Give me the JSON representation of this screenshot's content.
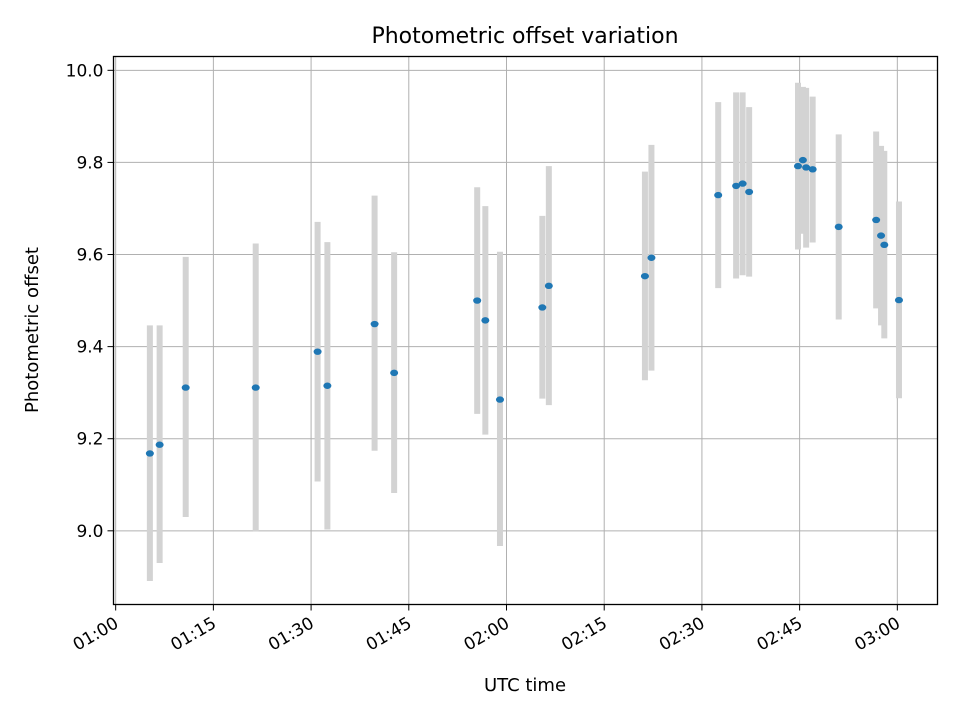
{
  "chart_data": {
    "type": "scatter",
    "title": "Photometric offset variation",
    "xlabel": "UTC time",
    "ylabel": "Photometric offset",
    "x_ticks": [
      "01:00",
      "01:15",
      "01:30",
      "01:45",
      "02:00",
      "02:15",
      "02:30",
      "02:45",
      "03:00"
    ],
    "y_ticks": [
      "9.0",
      "9.2",
      "9.4",
      "9.6",
      "9.8",
      "10.0"
    ],
    "grid": true,
    "xlim": [
      "00:59:40",
      "03:06:10"
    ],
    "ylim": [
      8.84,
      10.03
    ],
    "colors": {
      "marker": "#1f77b4",
      "errorbar": "#d3d3d3"
    },
    "points": [
      {
        "x": "01:05:15",
        "y": 9.168,
        "y_err_low": 8.891,
        "y_err_high": 9.446
      },
      {
        "x": "01:06:45",
        "y": 9.187,
        "y_err_low": 8.93,
        "y_err_high": 9.446
      },
      {
        "x": "01:10:45",
        "y": 9.311,
        "y_err_low": 9.03,
        "y_err_high": 9.595
      },
      {
        "x": "01:21:30",
        "y": 9.311,
        "y_err_low": 8.999,
        "y_err_high": 9.624
      },
      {
        "x": "01:31:00",
        "y": 9.389,
        "y_err_low": 9.107,
        "y_err_high": 9.671
      },
      {
        "x": "01:32:30",
        "y": 9.315,
        "y_err_low": 9.003,
        "y_err_high": 9.627
      },
      {
        "x": "01:39:45",
        "y": 9.449,
        "y_err_low": 9.174,
        "y_err_high": 9.728
      },
      {
        "x": "01:42:45",
        "y": 9.343,
        "y_err_low": 9.082,
        "y_err_high": 9.605
      },
      {
        "x": "01:55:30",
        "y": 9.5,
        "y_err_low": 9.254,
        "y_err_high": 9.746
      },
      {
        "x": "01:56:45",
        "y": 9.457,
        "y_err_low": 9.209,
        "y_err_high": 9.705
      },
      {
        "x": "01:59:00",
        "y": 9.285,
        "y_err_low": 8.967,
        "y_err_high": 9.606
      },
      {
        "x": "02:05:30",
        "y": 9.485,
        "y_err_low": 9.287,
        "y_err_high": 9.684
      },
      {
        "x": "02:06:30",
        "y": 9.532,
        "y_err_low": 9.273,
        "y_err_high": 9.792
      },
      {
        "x": "02:21:15",
        "y": 9.553,
        "y_err_low": 9.327,
        "y_err_high": 9.78
      },
      {
        "x": "02:22:15",
        "y": 9.593,
        "y_err_low": 9.348,
        "y_err_high": 9.838
      },
      {
        "x": "02:32:30",
        "y": 9.729,
        "y_err_low": 9.527,
        "y_err_high": 9.931
      },
      {
        "x": "02:35:15",
        "y": 9.749,
        "y_err_low": 9.548,
        "y_err_high": 9.952
      },
      {
        "x": "02:36:15",
        "y": 9.754,
        "y_err_low": 9.555,
        "y_err_high": 9.952
      },
      {
        "x": "02:37:15",
        "y": 9.736,
        "y_err_low": 9.552,
        "y_err_high": 9.92
      },
      {
        "x": "02:44:45",
        "y": 9.792,
        "y_err_low": 9.611,
        "y_err_high": 9.973
      },
      {
        "x": "02:45:30",
        "y": 9.805,
        "y_err_low": 9.645,
        "y_err_high": 9.964
      },
      {
        "x": "02:46:00",
        "y": 9.789,
        "y_err_low": 9.615,
        "y_err_high": 9.962
      },
      {
        "x": "02:47:00",
        "y": 9.785,
        "y_err_low": 9.626,
        "y_err_high": 9.943
      },
      {
        "x": "02:51:00",
        "y": 9.66,
        "y_err_low": 9.459,
        "y_err_high": 9.861
      },
      {
        "x": "02:56:45",
        "y": 9.675,
        "y_err_low": 9.483,
        "y_err_high": 9.867
      },
      {
        "x": "02:57:30",
        "y": 9.641,
        "y_err_low": 9.446,
        "y_err_high": 9.836
      },
      {
        "x": "02:58:00",
        "y": 9.621,
        "y_err_low": 9.418,
        "y_err_high": 9.825
      },
      {
        "x": "03:00:15",
        "y": 9.501,
        "y_err_low": 9.288,
        "y_err_high": 9.715
      }
    ]
  }
}
